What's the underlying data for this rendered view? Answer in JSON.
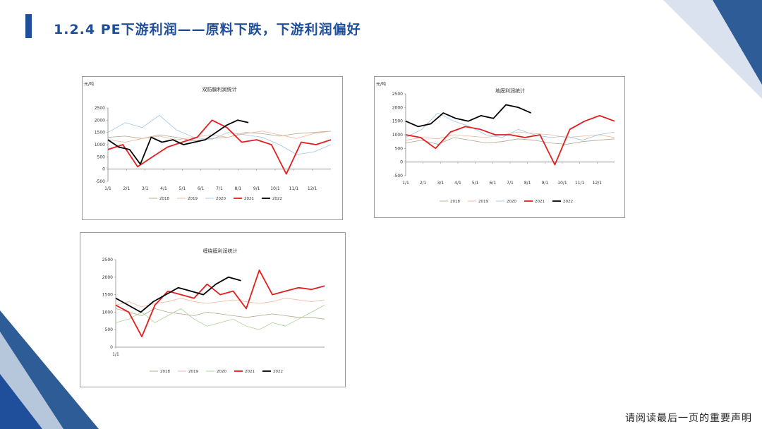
{
  "title": "1.2.4 PE下游利润——原料下跌，下游利润偏好",
  "footer": "请阅读最后一页的重要声明",
  "colors": {
    "accent": "#1F4E9A",
    "s2018": "#B5A58A",
    "s2019": "#F2B39A",
    "s2020": "#9DC3E6",
    "s2021": "#E31E1E",
    "s2022": "#000000",
    "sGreen": "#A9D18E"
  },
  "chart_data": [
    {
      "type": "line",
      "title": "双防膜利润统计",
      "ylabel": "元/吨",
      "ylim": [
        -500,
        2500
      ],
      "yticks": [
        "2500",
        "2000",
        "1500",
        "1000",
        "500",
        "0",
        "-500"
      ],
      "xticks": [
        "1/1",
        "2/1",
        "3/1",
        "4/1",
        "5/1",
        "6/1",
        "7/1",
        "8/1",
        "9/1",
        "10/1",
        "11/1",
        "12/1"
      ],
      "series": [
        {
          "name": "2018",
          "values": [
            1300,
            1350,
            1250,
            1400,
            1300,
            1150,
            1250,
            1300,
            1500,
            1450,
            1350,
            1450,
            1500,
            1550
          ]
        },
        {
          "name": "2019",
          "values": [
            1200,
            1100,
            1250,
            1350,
            1200,
            1300,
            1400,
            1300,
            1450,
            1550,
            1400,
            1250,
            1450,
            1550
          ]
        },
        {
          "name": "2020",
          "values": [
            1500,
            1900,
            1700,
            2200,
            1600,
            1300,
            1200,
            1500,
            1400,
            1300,
            1000,
            600,
            700,
            1000
          ]
        },
        {
          "name": "2021",
          "values": [
            800,
            1000,
            100,
            500,
            900,
            1100,
            1300,
            2000,
            1700,
            1100,
            1200,
            1000,
            -200,
            1100,
            1000,
            1200
          ]
        },
        {
          "name": "2022",
          "values": [
            1200,
            900,
            800,
            200,
            1300,
            1100,
            1200,
            1000,
            1100,
            1200,
            1500,
            1800,
            2000,
            1900
          ]
        }
      ]
    },
    {
      "type": "line",
      "title": "地膜利润统计",
      "ylabel": "元/吨",
      "ylim": [
        -500,
        2500
      ],
      "yticks": [
        "2500",
        "2000",
        "1500",
        "1000",
        "500",
        "0",
        "-500"
      ],
      "xticks": [
        "1/1",
        "2/1",
        "3/1",
        "4/1",
        "5/1",
        "6/1",
        "7/1",
        "8/1",
        "9/1",
        "10/1",
        "11/1",
        "12/1"
      ],
      "series": [
        {
          "name": "2018",
          "values": [
            700,
            800,
            650,
            900,
            800,
            700,
            750,
            850,
            800,
            700,
            650,
            750,
            800,
            850
          ]
        },
        {
          "name": "2019",
          "values": [
            800,
            900,
            850,
            1000,
            950,
            900,
            1000,
            1100,
            1050,
            1000,
            900,
            950,
            1000,
            900
          ]
        },
        {
          "name": "2020",
          "values": [
            900,
            1200,
            1800,
            1500,
            1300,
            1000,
            900,
            1200,
            1000,
            900,
            950,
            800,
            1000,
            1100
          ]
        },
        {
          "name": "2021",
          "values": [
            1000,
            900,
            500,
            1100,
            1300,
            1200,
            1000,
            1000,
            900,
            1000,
            -100,
            1200,
            1500,
            1700,
            1500
          ]
        },
        {
          "name": "2022",
          "values": [
            1500,
            1300,
            1400,
            1800,
            1600,
            1500,
            1700,
            1600,
            2100,
            2000,
            1800
          ]
        }
      ]
    },
    {
      "type": "line",
      "title": "缠绕膜利润统计",
      "ylim": [
        0,
        2500
      ],
      "yticks": [
        "2500",
        "2000",
        "1500",
        "1000",
        "500",
        "0"
      ],
      "xticks": [
        "1/1"
      ],
      "series": [
        {
          "name": "2018",
          "values": [
            1100,
            1000,
            900,
            1100,
            1000,
            950,
            900,
            1000,
            950,
            900,
            850,
            900,
            950,
            900,
            850,
            850,
            800
          ]
        },
        {
          "name": "2019",
          "values": [
            1200,
            1300,
            1150,
            1250,
            1300,
            1400,
            1300,
            1250,
            1300,
            1350,
            1300,
            1250,
            1300,
            1400,
            1350,
            1300,
            1350
          ]
        },
        {
          "name": "2020",
          "values": [
            700,
            800,
            1000,
            700,
            900,
            1100,
            800,
            600,
            700,
            800,
            600,
            500,
            700,
            600,
            800,
            1000,
            1200
          ]
        },
        {
          "name": "2021",
          "values": [
            1200,
            1000,
            300,
            1200,
            1600,
            1500,
            1400,
            1800,
            1500,
            1600,
            1100,
            2200,
            1500,
            1600,
            1700,
            1650,
            1750
          ]
        },
        {
          "name": "2022",
          "values": [
            1400,
            1200,
            1000,
            1300,
            1500,
            1700,
            1600,
            1500,
            1800,
            2000,
            1900
          ]
        }
      ]
    }
  ]
}
